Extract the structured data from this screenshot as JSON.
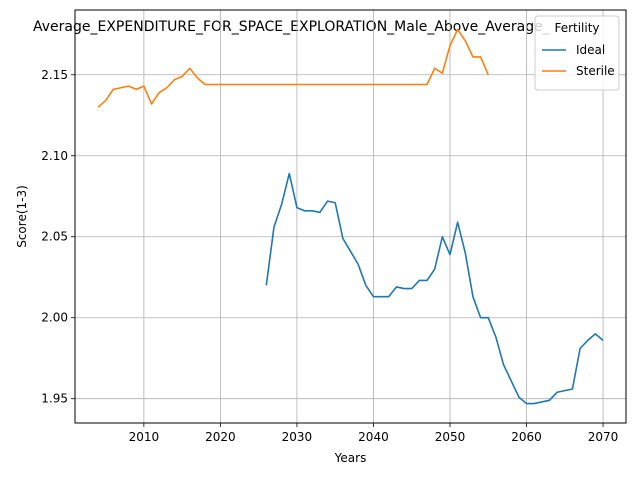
{
  "chart_data": {
    "type": "line",
    "title": "Average_EXPENDITURE_FOR_SPACE_EXPLORATION_Male_Above_Average_",
    "xlabel": "Years",
    "ylabel": "Score(1-3)",
    "xlim": [
      2001,
      2073
    ],
    "ylim": [
      1.935,
      2.19
    ],
    "xticks": [
      2010,
      2020,
      2030,
      2040,
      2050,
      2060,
      2070
    ],
    "yticks": [
      1.95,
      2.0,
      2.05,
      2.1,
      2.15
    ],
    "ytick_labels": [
      "1.95",
      "2.00",
      "2.05",
      "2.10",
      "2.15"
    ],
    "grid": true,
    "legend": {
      "title": "Fertility",
      "placement": "top-right"
    },
    "series": [
      {
        "name": "Ideal",
        "color": "#1f77b4",
        "x": [
          2026,
          2027,
          2028,
          2029,
          2030,
          2031,
          2032,
          2033,
          2034,
          2035,
          2036,
          2037,
          2038,
          2039,
          2040,
          2041,
          2042,
          2043,
          2044,
          2045,
          2046,
          2047,
          2048,
          2049,
          2050,
          2051,
          2052,
          2053,
          2054,
          2055,
          2056,
          2057,
          2058,
          2059,
          2060,
          2061,
          2062,
          2063,
          2064,
          2065,
          2066,
          2067,
          2068,
          2069,
          2070
        ],
        "y": [
          2.02,
          2.056,
          2.07,
          2.089,
          2.068,
          2.066,
          2.066,
          2.065,
          2.072,
          2.071,
          2.049,
          2.041,
          2.033,
          2.02,
          2.013,
          2.013,
          2.013,
          2.019,
          2.018,
          2.018,
          2.023,
          2.023,
          2.03,
          2.05,
          2.039,
          2.059,
          2.04,
          2.013,
          2.0,
          2.0,
          1.988,
          1.971,
          1.961,
          1.951,
          1.947,
          1.947,
          1.948,
          1.949,
          1.954,
          1.955,
          1.956,
          1.981,
          1.986,
          1.99,
          1.986
        ]
      },
      {
        "name": "Sterile",
        "color": "#ff7f0e",
        "x": [
          2004,
          2005,
          2006,
          2007,
          2008,
          2009,
          2010,
          2011,
          2012,
          2013,
          2014,
          2015,
          2016,
          2017,
          2018,
          2019,
          2020,
          2021,
          2022,
          2023,
          2024,
          2025,
          2026,
          2027,
          2028,
          2029,
          2030,
          2031,
          2032,
          2033,
          2034,
          2035,
          2036,
          2037,
          2038,
          2039,
          2040,
          2041,
          2042,
          2043,
          2044,
          2045,
          2046,
          2047,
          2048,
          2049,
          2050,
          2051,
          2052,
          2053,
          2054,
          2055
        ],
        "y": [
          2.13,
          2.134,
          2.141,
          2.142,
          2.143,
          2.141,
          2.143,
          2.132,
          2.139,
          2.142,
          2.147,
          2.149,
          2.154,
          2.148,
          2.144,
          2.144,
          2.144,
          2.144,
          2.144,
          2.144,
          2.144,
          2.144,
          2.144,
          2.144,
          2.144,
          2.144,
          2.144,
          2.144,
          2.144,
          2.144,
          2.144,
          2.144,
          2.144,
          2.144,
          2.144,
          2.144,
          2.144,
          2.144,
          2.144,
          2.144,
          2.144,
          2.144,
          2.144,
          2.144,
          2.154,
          2.151,
          2.168,
          2.178,
          2.171,
          2.161,
          2.161,
          2.15
        ]
      }
    ]
  }
}
